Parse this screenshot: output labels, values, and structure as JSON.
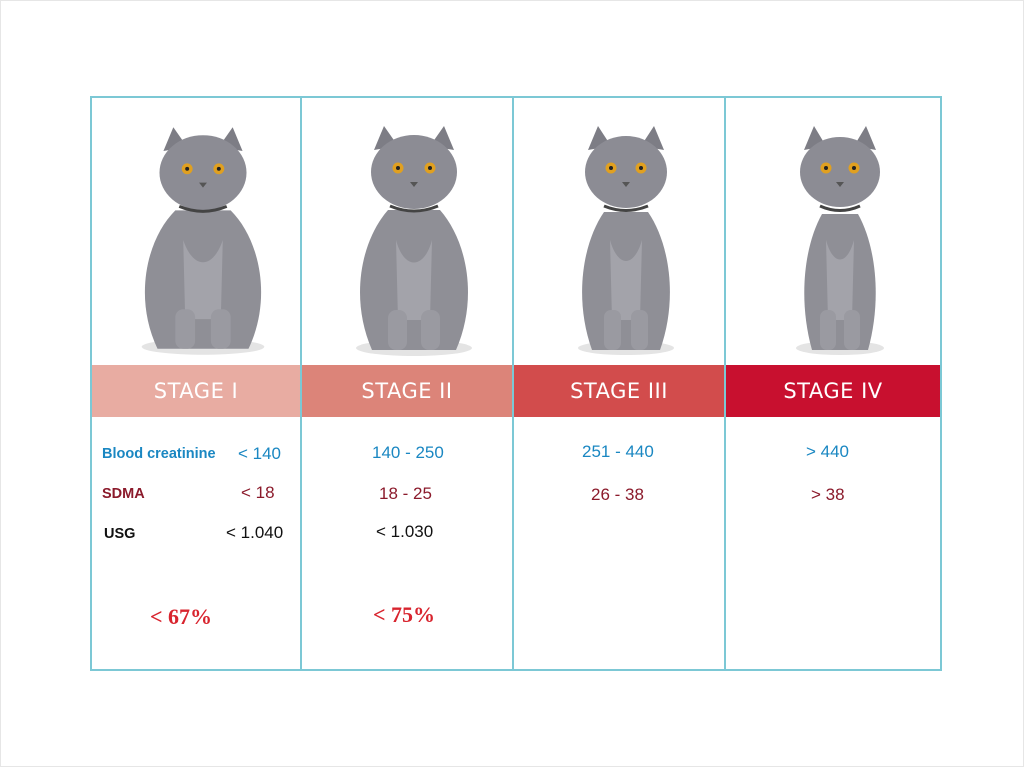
{
  "rows": {
    "creatinine_label": "Blood creatinine",
    "sdma_label": "SDMA",
    "usg_label": "USG"
  },
  "stages": [
    {
      "name": "STAGE I",
      "creatinine": "< 140",
      "sdma": "< 18",
      "usg": "< 1.040",
      "percent": "< 67%"
    },
    {
      "name": "STAGE II",
      "creatinine": "140 - 250",
      "sdma": "18 - 25",
      "usg": "< 1.030",
      "percent": "< 75%"
    },
    {
      "name": "STAGE III",
      "creatinine": "251 - 440",
      "sdma": "26 - 38",
      "usg": "",
      "percent": ""
    },
    {
      "name": "STAGE IV",
      "creatinine": "> 440",
      "sdma": "> 38",
      "usg": "",
      "percent": ""
    }
  ],
  "colors": {
    "border": "#7cc8d5",
    "stage_1": "#e8aca2",
    "stage_2": "#dc8479",
    "stage_3": "#d24c4c",
    "stage_4": "#c8102f",
    "creatinine_text": "#1a87c2",
    "sdma_text": "#8b1a2b",
    "percent_text": "#d8242e"
  },
  "images": [
    {
      "icon": "cat-photo",
      "body_scale": 1.0
    },
    {
      "icon": "cat-photo",
      "body_scale": 0.93
    },
    {
      "icon": "cat-photo",
      "body_scale": 0.82
    },
    {
      "icon": "cat-photo",
      "body_scale": 0.72
    }
  ]
}
